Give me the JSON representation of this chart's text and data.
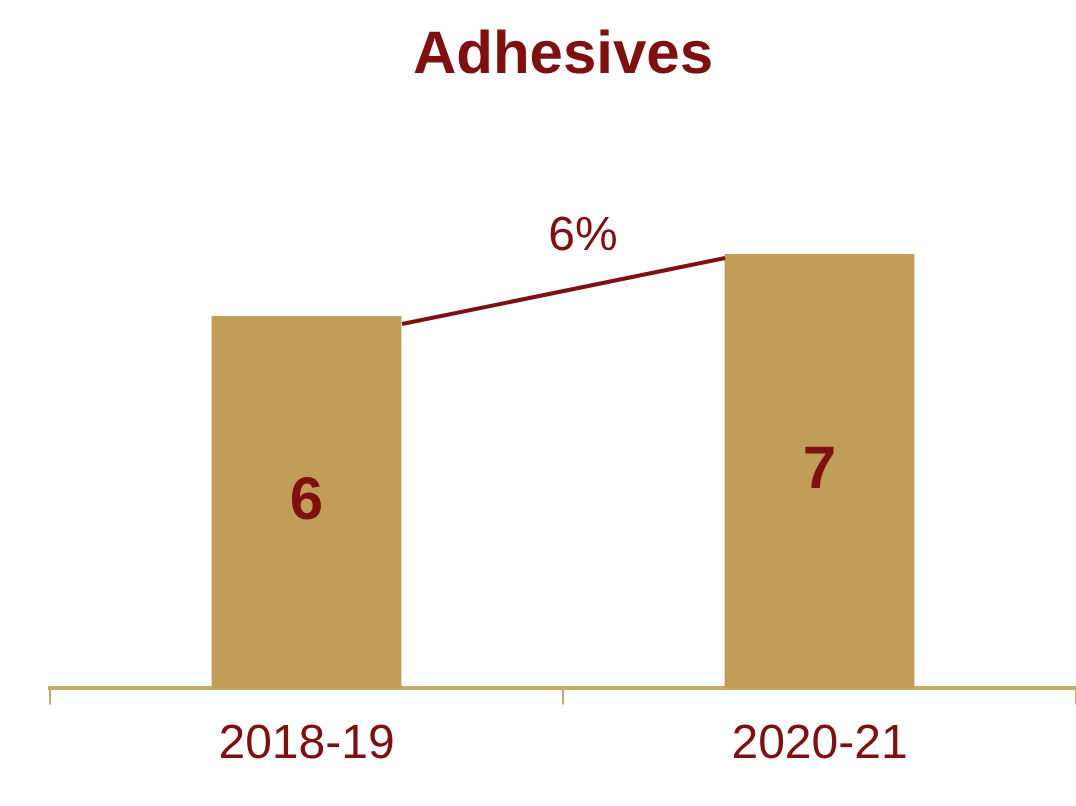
{
  "chart_data": {
    "type": "bar",
    "title": "Adhesives",
    "categories": [
      "2018-19",
      "2020-21"
    ],
    "values": [
      6,
      7
    ],
    "color": "#c19d5a",
    "data_labels": true,
    "annotations": [
      "6%"
    ]
  }
}
